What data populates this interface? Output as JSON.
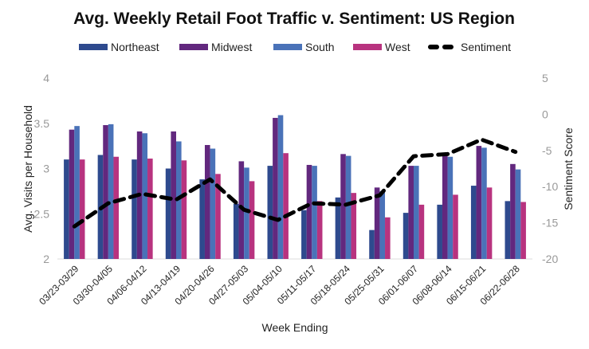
{
  "chart_data": {
    "type": "bar",
    "title": "Avg. Weekly Retail Foot Traffic v. Sentiment:  US Region",
    "xlabel": "Week Ending",
    "ylabel": "Avg. Visits per Household",
    "y2label": "Sentiment Score",
    "ylim": [
      2,
      4
    ],
    "yticks": [
      "2",
      "2.5",
      "3",
      "3.5",
      "4"
    ],
    "y2lim": [
      -20,
      5
    ],
    "y2ticks": [
      "-20",
      "-15",
      "-10",
      "-5",
      "0",
      "5"
    ],
    "grid": false,
    "legend_position": "top",
    "categories": [
      "03/23-03/29",
      "03/30-04/05",
      "04/06-04/12",
      "04/13-04/19",
      "04/20-04/26",
      "04/27-05/03",
      "05/04-05/10",
      "05/11-05/17",
      "05/18-05/24",
      "05/25-05/31",
      "06/01-06/07",
      "06/08-06/14",
      "06/15-06/21",
      "06/22-06/28"
    ],
    "series": [
      {
        "name": "Northeast",
        "type": "bar",
        "axis": "left",
        "color": "#2E4A8E",
        "values": [
          3.1,
          3.15,
          3.1,
          3.0,
          2.88,
          2.61,
          3.03,
          2.54,
          2.68,
          2.32,
          2.51,
          2.6,
          2.81,
          2.64
        ]
      },
      {
        "name": "Midwest",
        "type": "bar",
        "axis": "left",
        "color": "#62287E",
        "values": [
          3.43,
          3.48,
          3.41,
          3.41,
          3.26,
          3.08,
          3.56,
          3.04,
          3.16,
          2.79,
          3.03,
          3.14,
          3.25,
          3.05
        ]
      },
      {
        "name": "South",
        "type": "bar",
        "axis": "left",
        "color": "#4A72B8",
        "values": [
          3.47,
          3.49,
          3.39,
          3.3,
          3.22,
          3.01,
          3.59,
          3.03,
          3.14,
          2.75,
          3.03,
          3.13,
          3.23,
          2.99
        ]
      },
      {
        "name": "West",
        "type": "bar",
        "axis": "left",
        "color": "#B8337F",
        "values": [
          3.1,
          3.13,
          3.11,
          3.09,
          2.94,
          2.86,
          3.17,
          2.64,
          2.73,
          2.46,
          2.6,
          2.71,
          2.79,
          2.63
        ]
      },
      {
        "name": "Sentiment",
        "type": "line",
        "style": "dashed",
        "axis": "right",
        "color": "#000000",
        "values": [
          -15.5,
          -12.3,
          -11.0,
          -11.8,
          -9.0,
          -13.2,
          -14.6,
          -12.3,
          -12.5,
          -11.2,
          -5.8,
          -5.5,
          -3.5,
          -5.2
        ]
      }
    ]
  }
}
